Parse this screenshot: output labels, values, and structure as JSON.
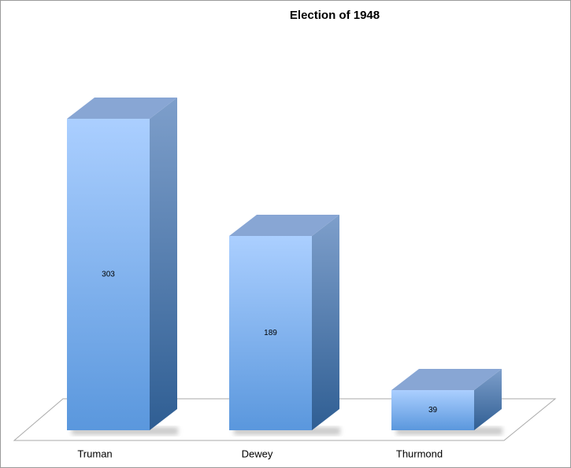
{
  "chart_data": {
    "type": "bar3d",
    "title": "Election of 1948",
    "categories": [
      "Truman",
      "Dewey",
      "Thurmond"
    ],
    "values": [
      303,
      189,
      39
    ],
    "color": "#6aa4ec"
  }
}
